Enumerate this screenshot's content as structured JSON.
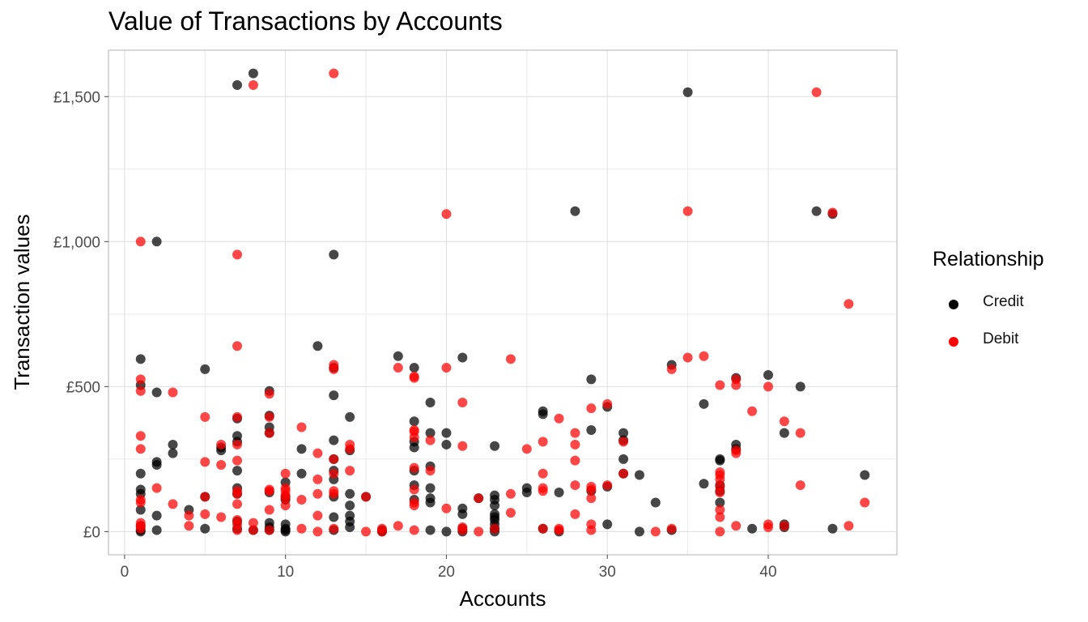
{
  "chart_data": {
    "type": "scatter",
    "title": "Value of Transactions by Accounts",
    "xlabel": "Accounts",
    "ylabel": "Transaction values",
    "xlim": [
      -1,
      48
    ],
    "ylim": [
      -80,
      1660
    ],
    "x_ticks": [
      0,
      10,
      20,
      30,
      40
    ],
    "y_ticks": [
      0,
      500,
      1000,
      1500
    ],
    "y_tick_labels": [
      "£0",
      "£500",
      "£1,000",
      "£1,500"
    ],
    "grid": true,
    "legend": {
      "title": "Relationship",
      "position": "right"
    },
    "series": [
      {
        "name": "Credit",
        "color": "#000000",
        "points": [
          [
            1,
            595
          ],
          [
            1,
            505
          ],
          [
            1,
            200
          ],
          [
            1,
            145
          ],
          [
            1,
            130
          ],
          [
            1,
            75
          ],
          [
            1,
            20
          ],
          [
            1,
            5
          ],
          [
            1,
            0
          ],
          [
            2,
            1000
          ],
          [
            2,
            480
          ],
          [
            2,
            240
          ],
          [
            2,
            230
          ],
          [
            2,
            55
          ],
          [
            2,
            5
          ],
          [
            3,
            300
          ],
          [
            3,
            270
          ],
          [
            4,
            75
          ],
          [
            5,
            560
          ],
          [
            5,
            120
          ],
          [
            5,
            10
          ],
          [
            6,
            290
          ],
          [
            6,
            280
          ],
          [
            7,
            1540
          ],
          [
            7,
            390
          ],
          [
            7,
            330
          ],
          [
            7,
            310
          ],
          [
            7,
            210
          ],
          [
            7,
            150
          ],
          [
            7,
            130
          ],
          [
            7,
            35
          ],
          [
            7,
            10
          ],
          [
            8,
            1580
          ],
          [
            8,
            5
          ],
          [
            9,
            485
          ],
          [
            9,
            400
          ],
          [
            9,
            360
          ],
          [
            9,
            340
          ],
          [
            9,
            135
          ],
          [
            9,
            30
          ],
          [
            9,
            15
          ],
          [
            9,
            5
          ],
          [
            10,
            170
          ],
          [
            10,
            120
          ],
          [
            10,
            110
          ],
          [
            10,
            25
          ],
          [
            10,
            10
          ],
          [
            10,
            5
          ],
          [
            10,
            0
          ],
          [
            11,
            285
          ],
          [
            11,
            200
          ],
          [
            12,
            640
          ],
          [
            13,
            955
          ],
          [
            13,
            565
          ],
          [
            13,
            470
          ],
          [
            13,
            315
          ],
          [
            13,
            250
          ],
          [
            13,
            210
          ],
          [
            13,
            180
          ],
          [
            13,
            120
          ],
          [
            13,
            50
          ],
          [
            13,
            5
          ],
          [
            14,
            395
          ],
          [
            14,
            280
          ],
          [
            14,
            130
          ],
          [
            14,
            90
          ],
          [
            14,
            55
          ],
          [
            14,
            35
          ],
          [
            14,
            15
          ],
          [
            15,
            120
          ],
          [
            16,
            5
          ],
          [
            16,
            0
          ],
          [
            17,
            605
          ],
          [
            18,
            565
          ],
          [
            18,
            380
          ],
          [
            18,
            310
          ],
          [
            18,
            290
          ],
          [
            18,
            210
          ],
          [
            18,
            160
          ],
          [
            18,
            110
          ],
          [
            19,
            445
          ],
          [
            19,
            340
          ],
          [
            19,
            225
          ],
          [
            19,
            150
          ],
          [
            19,
            115
          ],
          [
            19,
            100
          ],
          [
            19,
            5
          ],
          [
            20,
            340
          ],
          [
            20,
            300
          ],
          [
            20,
            0
          ],
          [
            21,
            600
          ],
          [
            21,
            80
          ],
          [
            21,
            60
          ],
          [
            21,
            10
          ],
          [
            21,
            0
          ],
          [
            22,
            115
          ],
          [
            23,
            295
          ],
          [
            23,
            125
          ],
          [
            23,
            110
          ],
          [
            23,
            90
          ],
          [
            23,
            60
          ],
          [
            23,
            50
          ],
          [
            23,
            40
          ],
          [
            23,
            25
          ],
          [
            23,
            10
          ],
          [
            23,
            0
          ],
          [
            25,
            150
          ],
          [
            25,
            135
          ],
          [
            26,
            415
          ],
          [
            26,
            405
          ],
          [
            26,
            10
          ],
          [
            27,
            135
          ],
          [
            27,
            0
          ],
          [
            28,
            1105
          ],
          [
            29,
            525
          ],
          [
            29,
            350
          ],
          [
            29,
            140
          ],
          [
            30,
            430
          ],
          [
            30,
            155
          ],
          [
            30,
            25
          ],
          [
            31,
            340
          ],
          [
            31,
            315
          ],
          [
            31,
            250
          ],
          [
            31,
            200
          ],
          [
            32,
            195
          ],
          [
            32,
            0
          ],
          [
            33,
            100
          ],
          [
            34,
            575
          ],
          [
            34,
            5
          ],
          [
            35,
            1515
          ],
          [
            36,
            440
          ],
          [
            36,
            165
          ],
          [
            37,
            250
          ],
          [
            37,
            245
          ],
          [
            37,
            160
          ],
          [
            37,
            140
          ],
          [
            37,
            100
          ],
          [
            38,
            530
          ],
          [
            38,
            300
          ],
          [
            38,
            285
          ],
          [
            39,
            10
          ],
          [
            40,
            540
          ],
          [
            41,
            340
          ],
          [
            41,
            25
          ],
          [
            41,
            15
          ],
          [
            42,
            500
          ],
          [
            43,
            1105
          ],
          [
            44,
            1095
          ],
          [
            44,
            10
          ],
          [
            46,
            195
          ]
        ]
      },
      {
        "name": "Debit",
        "color": "#FF0000",
        "points": [
          [
            1,
            1000
          ],
          [
            1,
            525
          ],
          [
            1,
            485
          ],
          [
            1,
            330
          ],
          [
            1,
            285
          ],
          [
            1,
            110
          ],
          [
            1,
            100
          ],
          [
            1,
            30
          ],
          [
            1,
            20
          ],
          [
            1,
            10
          ],
          [
            2,
            150
          ],
          [
            3,
            480
          ],
          [
            3,
            95
          ],
          [
            4,
            55
          ],
          [
            4,
            20
          ],
          [
            5,
            395
          ],
          [
            5,
            240
          ],
          [
            5,
            120
          ],
          [
            5,
            60
          ],
          [
            6,
            300
          ],
          [
            6,
            230
          ],
          [
            6,
            50
          ],
          [
            7,
            955
          ],
          [
            7,
            640
          ],
          [
            7,
            395
          ],
          [
            7,
            300
          ],
          [
            7,
            245
          ],
          [
            7,
            140
          ],
          [
            7,
            130
          ],
          [
            7,
            95
          ],
          [
            7,
            40
          ],
          [
            7,
            25
          ],
          [
            7,
            5
          ],
          [
            8,
            1540
          ],
          [
            8,
            30
          ],
          [
            8,
            5
          ],
          [
            9,
            475
          ],
          [
            9,
            395
          ],
          [
            9,
            340
          ],
          [
            9,
            145
          ],
          [
            9,
            140
          ],
          [
            9,
            75
          ],
          [
            9,
            5
          ],
          [
            10,
            200
          ],
          [
            10,
            150
          ],
          [
            10,
            140
          ],
          [
            10,
            125
          ],
          [
            10,
            115
          ],
          [
            10,
            90
          ],
          [
            11,
            360
          ],
          [
            11,
            110
          ],
          [
            11,
            10
          ],
          [
            12,
            270
          ],
          [
            12,
            180
          ],
          [
            12,
            130
          ],
          [
            12,
            55
          ],
          [
            12,
            0
          ],
          [
            13,
            1580
          ],
          [
            13,
            575
          ],
          [
            13,
            560
          ],
          [
            13,
            250
          ],
          [
            13,
            200
          ],
          [
            13,
            140
          ],
          [
            13,
            130
          ],
          [
            13,
            10
          ],
          [
            14,
            300
          ],
          [
            14,
            285
          ],
          [
            14,
            210
          ],
          [
            15,
            120
          ],
          [
            15,
            0
          ],
          [
            16,
            10
          ],
          [
            16,
            0
          ],
          [
            17,
            565
          ],
          [
            17,
            20
          ],
          [
            18,
            535
          ],
          [
            18,
            530
          ],
          [
            18,
            350
          ],
          [
            18,
            345
          ],
          [
            18,
            325
          ],
          [
            18,
            220
          ],
          [
            18,
            145
          ],
          [
            18,
            100
          ],
          [
            18,
            90
          ],
          [
            18,
            5
          ],
          [
            19,
            315
          ],
          [
            19,
            210
          ],
          [
            20,
            1095
          ],
          [
            20,
            565
          ],
          [
            20,
            80
          ],
          [
            21,
            445
          ],
          [
            21,
            295
          ],
          [
            21,
            15
          ],
          [
            21,
            5
          ],
          [
            22,
            115
          ],
          [
            22,
            0
          ],
          [
            23,
            10
          ],
          [
            24,
            595
          ],
          [
            24,
            130
          ],
          [
            24,
            65
          ],
          [
            25,
            285
          ],
          [
            26,
            310
          ],
          [
            26,
            200
          ],
          [
            26,
            150
          ],
          [
            26,
            140
          ],
          [
            26,
            10
          ],
          [
            27,
            390
          ],
          [
            27,
            10
          ],
          [
            27,
            5
          ],
          [
            28,
            340
          ],
          [
            28,
            300
          ],
          [
            28,
            245
          ],
          [
            28,
            160
          ],
          [
            28,
            60
          ],
          [
            29,
            425
          ],
          [
            29,
            155
          ],
          [
            29,
            145
          ],
          [
            29,
            115
          ],
          [
            29,
            25
          ],
          [
            29,
            5
          ],
          [
            30,
            440
          ],
          [
            30,
            160
          ],
          [
            31,
            310
          ],
          [
            31,
            200
          ],
          [
            33,
            0
          ],
          [
            34,
            560
          ],
          [
            34,
            10
          ],
          [
            35,
            1105
          ],
          [
            35,
            600
          ],
          [
            36,
            605
          ],
          [
            37,
            505
          ],
          [
            37,
            205
          ],
          [
            37,
            195
          ],
          [
            37,
            180
          ],
          [
            37,
            155
          ],
          [
            37,
            135
          ],
          [
            37,
            75
          ],
          [
            37,
            50
          ],
          [
            37,
            0
          ],
          [
            38,
            525
          ],
          [
            38,
            505
          ],
          [
            38,
            280
          ],
          [
            38,
            270
          ],
          [
            38,
            20
          ],
          [
            39,
            415
          ],
          [
            40,
            500
          ],
          [
            40,
            25
          ],
          [
            40,
            15
          ],
          [
            41,
            380
          ],
          [
            41,
            20
          ],
          [
            42,
            340
          ],
          [
            42,
            160
          ],
          [
            43,
            1515
          ],
          [
            44,
            1100
          ],
          [
            45,
            785
          ],
          [
            45,
            20
          ],
          [
            46,
            100
          ]
        ]
      }
    ]
  }
}
